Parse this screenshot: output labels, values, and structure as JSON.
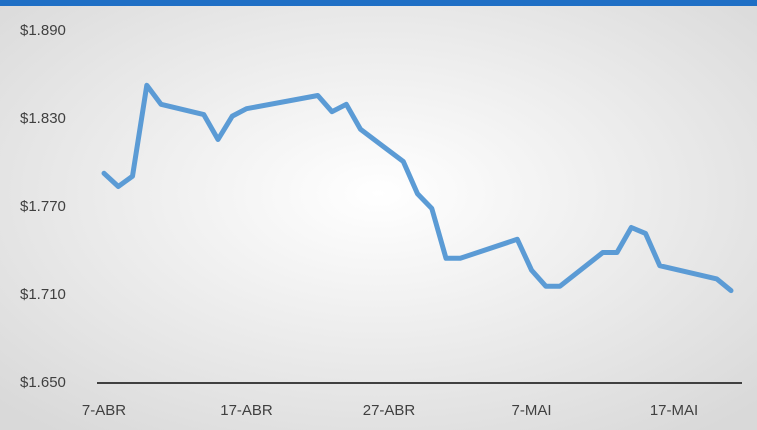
{
  "chart_data": {
    "type": "line",
    "x": [
      "7-ABR",
      "8-ABR",
      "9-ABR",
      "10-ABR",
      "11-ABR",
      "14-ABR",
      "15-ABR",
      "16-ABR",
      "17-ABR",
      "22-ABR",
      "23-ABR",
      "24-ABR",
      "25-ABR",
      "28-ABR",
      "29-ABR",
      "30-ABR",
      "1-MAI",
      "2-MAI",
      "6-MAI",
      "7-MAI",
      "8-MAI",
      "9-MAI",
      "12-MAI",
      "13-MAI",
      "14-MAI",
      "15-MAI",
      "16-MAI",
      "20-MAI",
      "21-MAI"
    ],
    "values": [
      1793,
      1784,
      1791,
      1853,
      1840,
      1833,
      1816,
      1832,
      1837,
      1846,
      1835,
      1840,
      1823,
      1801,
      1779,
      1769,
      1735,
      1735,
      1748,
      1727,
      1716,
      1716,
      1739,
      1739,
      1756,
      1752,
      1730,
      1721,
      1713
    ],
    "color": "#5b9bd5",
    "xlim": [
      "7-ABR",
      "21-MAI"
    ],
    "xticks": [
      "7-ABR",
      "17-ABR",
      "27-ABR",
      "7-MAI",
      "17-MAI"
    ],
    "ylim": [
      1650,
      1890
    ],
    "yticks": [
      {
        "value": 1650,
        "label": "$1.650"
      },
      {
        "value": 1710,
        "label": "$1.710"
      },
      {
        "value": 1770,
        "label": "$1.770"
      },
      {
        "value": 1830,
        "label": "$1.830"
      },
      {
        "value": 1890,
        "label": "$1.890"
      }
    ],
    "grid": false
  }
}
